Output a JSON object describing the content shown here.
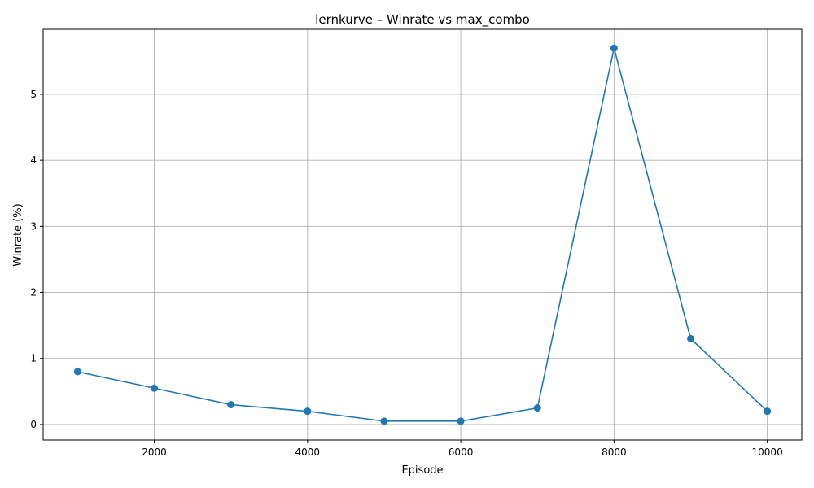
{
  "chart_data": {
    "type": "line",
    "title": "lernkurve – Winrate vs max_combo",
    "xlabel": "Episode",
    "ylabel": "Winrate (%)",
    "x": [
      1000,
      2000,
      3000,
      4000,
      5000,
      6000,
      7000,
      8000,
      9000,
      10000
    ],
    "series": [
      {
        "values": [
          0.8,
          0.55,
          0.3,
          0.2,
          0.05,
          0.05,
          0.25,
          5.7,
          1.3,
          0.2
        ],
        "color": "#1f77b4",
        "marker": "circle"
      }
    ],
    "xlim": [
      550,
      10450
    ],
    "ylim": [
      -0.235,
      5.985
    ],
    "xticks": [
      2000,
      4000,
      6000,
      8000,
      10000
    ],
    "yticks": [
      0,
      1,
      2,
      3,
      4,
      5
    ],
    "grid": true,
    "colors": {
      "line": "#1f77b4",
      "grid": "#b0b0b0",
      "axis": "#000000"
    }
  }
}
